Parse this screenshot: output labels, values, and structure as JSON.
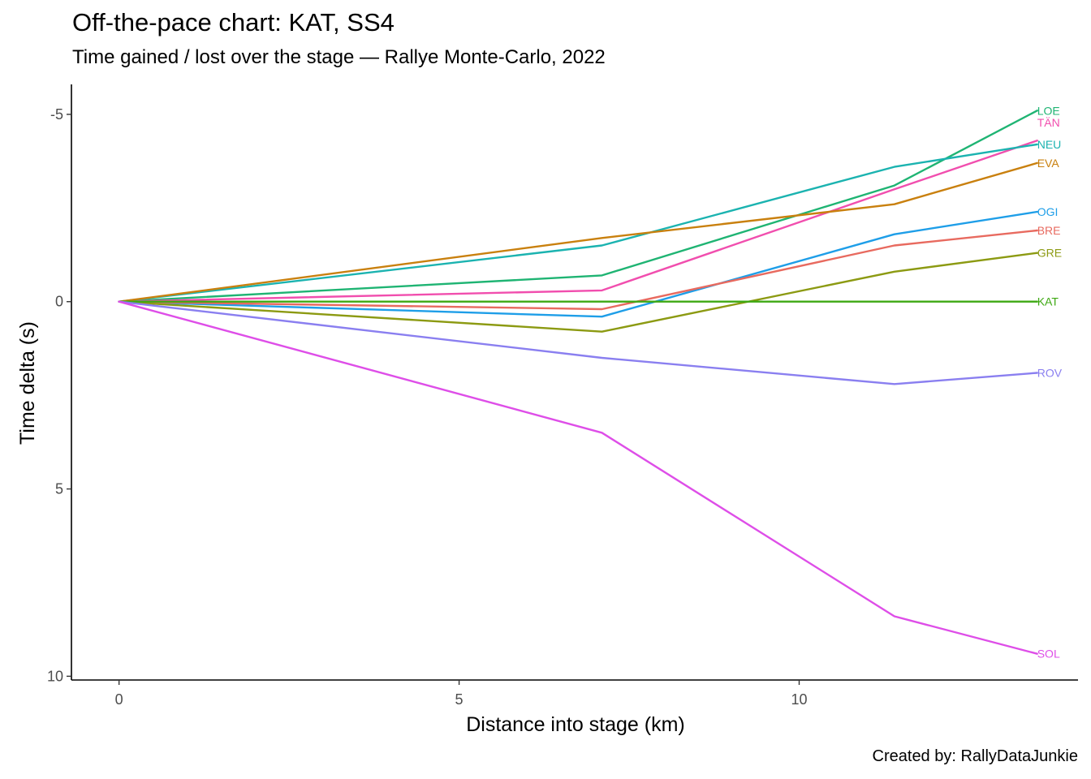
{
  "title": "Off-the-pace chart: KAT, SS4",
  "subtitle": "Time gained / lost over the stage — Rallye Monte-Carlo, 2022",
  "caption": "Created by: RallyDataJunkie",
  "chart_data": {
    "type": "line",
    "xlabel": "Distance into stage (km)",
    "ylabel": "Time delta (s)",
    "xlim": [
      -0.7,
      14.1
    ],
    "ylim": [
      -5.8,
      10.1
    ],
    "y_reversed": true,
    "xticks": [
      0,
      5,
      10
    ],
    "yticks": [
      -5,
      0,
      5,
      10
    ],
    "x": [
      0,
      7.1,
      11.4,
      13.5
    ],
    "grid": false,
    "legend": "direct-labels-right",
    "series": [
      {
        "name": "LOE",
        "color": "#1FB473",
        "values": [
          0,
          -0.7,
          -3.1,
          -5.1
        ]
      },
      {
        "name": "TÄN",
        "color": "#F14EAE",
        "values": [
          0,
          -0.3,
          -3.0,
          -4.3
        ]
      },
      {
        "name": "NEU",
        "color": "#1BB3B0",
        "values": [
          0,
          -1.5,
          -3.6,
          -4.2
        ]
      },
      {
        "name": "EVA",
        "color": "#C9800E",
        "values": [
          0,
          -1.7,
          -2.6,
          -3.7
        ]
      },
      {
        "name": "OGI",
        "color": "#1E9EE8",
        "values": [
          0,
          0.4,
          -1.8,
          -2.4
        ]
      },
      {
        "name": "BRE",
        "color": "#E86A5F",
        "values": [
          0,
          0.2,
          -1.5,
          -1.9
        ]
      },
      {
        "name": "GRE",
        "color": "#8C9A12",
        "values": [
          0,
          0.8,
          -0.8,
          -1.3
        ]
      },
      {
        "name": "KAT",
        "color": "#3DA812",
        "values": [
          0,
          0,
          0,
          0
        ]
      },
      {
        "name": "ROV",
        "color": "#8A7FF0",
        "values": [
          0,
          1.5,
          2.2,
          1.9
        ]
      },
      {
        "name": "SOL",
        "color": "#DE4EE8",
        "values": [
          0,
          3.5,
          8.4,
          9.4
        ]
      }
    ]
  }
}
